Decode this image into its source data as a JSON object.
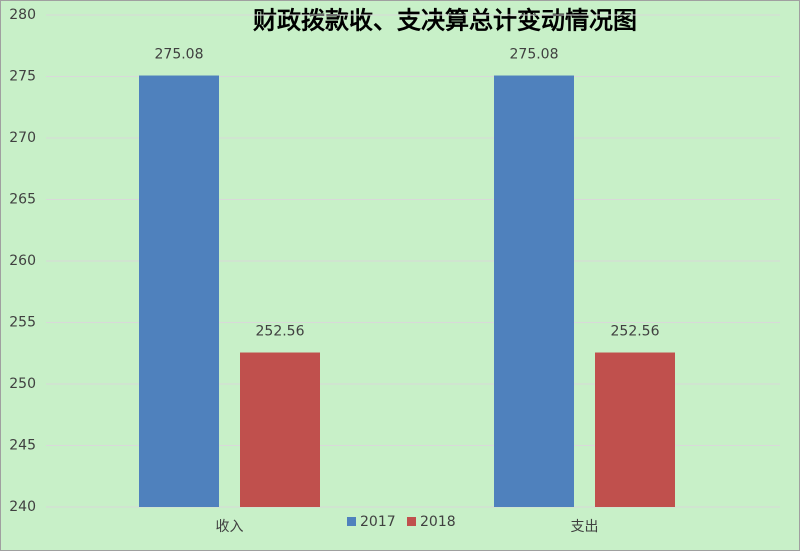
{
  "chart_data": {
    "type": "bar",
    "title": "财政拨款收、支决算总计变动情况图",
    "categories": [
      "收入",
      "支出"
    ],
    "series": [
      {
        "name": "2017",
        "color": "#4f81bd",
        "values": [
          275.08,
          275.08
        ]
      },
      {
        "name": "2018",
        "color": "#c0504d",
        "values": [
          252.56,
          252.56
        ]
      }
    ],
    "ylim": [
      240,
      280
    ],
    "yticks": [
      240,
      245,
      250,
      255,
      260,
      265,
      270,
      275,
      280
    ],
    "grid": true,
    "legend": "bottom"
  }
}
